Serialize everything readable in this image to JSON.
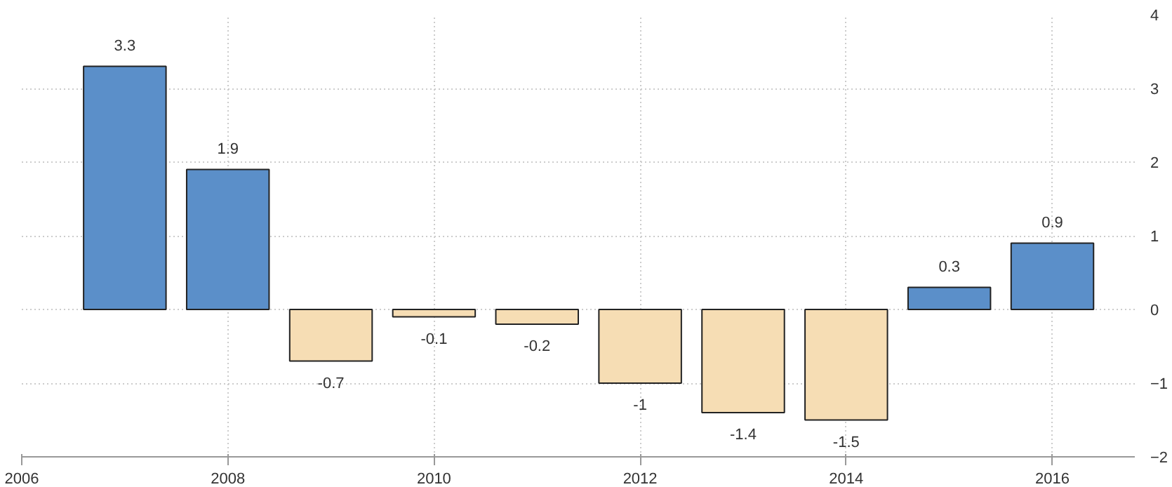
{
  "chart_data": {
    "type": "bar",
    "x": [
      2007,
      2008,
      2009,
      2010,
      2011,
      2012,
      2013,
      2014,
      2015,
      2016
    ],
    "values": [
      3.3,
      1.9,
      -0.7,
      -0.1,
      -0.2,
      -1,
      -1.4,
      -1.5,
      0.3,
      0.9
    ],
    "colors": [
      "#5b8fc9",
      "#5b8fc9",
      "#f6ddb4",
      "#f6ddb4",
      "#f6ddb4",
      "#f6ddb4",
      "#f6ddb4",
      "#f6ddb4",
      "#5b8fc9",
      "#5b8fc9"
    ],
    "data_labels": true,
    "xlim": [
      2006,
      2016.8
    ],
    "xticks": [
      2006,
      2008,
      2010,
      2012,
      2014,
      2016
    ],
    "ylim": [
      -2,
      4
    ],
    "yticks": [
      -2,
      -1,
      0,
      1,
      2,
      3,
      4
    ],
    "grid": true
  }
}
